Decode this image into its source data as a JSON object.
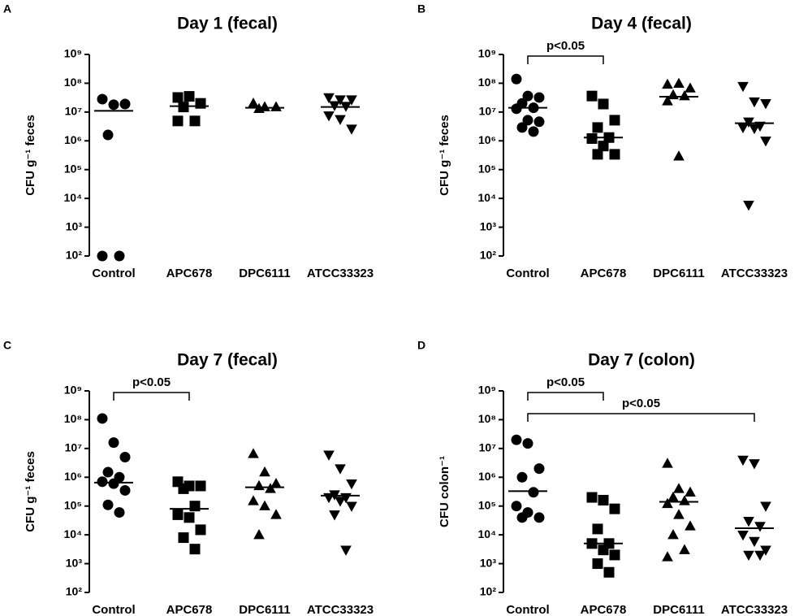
{
  "chart_data": [
    {
      "type": "dot",
      "panel": "A",
      "title": "Day 1 (fecal)",
      "ylabel": "CFU g⁻¹ feces",
      "log_scale": true,
      "color": "#000000",
      "markers": [
        "circle",
        "square",
        "triangle-up",
        "triangle-down"
      ],
      "ylim": [
        100,
        1000000000
      ],
      "yticks": [
        {
          "value": 100,
          "label": "10²"
        },
        {
          "value": 1000,
          "label": "10³"
        },
        {
          "value": 10000,
          "label": "10⁴"
        },
        {
          "value": 100000,
          "label": "10⁵"
        },
        {
          "value": 1000000,
          "label": "10⁶"
        },
        {
          "value": 10000000,
          "label": "10⁷"
        },
        {
          "value": 100000000,
          "label": "10⁸"
        },
        {
          "value": 1000000000,
          "label": "10⁹"
        }
      ],
      "categories": [
        "Control",
        "APC678",
        "DPC6111",
        "ATCC33323"
      ],
      "values": [
        [
          28000000,
          18000000,
          19000000,
          1600000,
          100,
          100
        ],
        [
          32000000,
          35000000,
          20000000,
          15000000,
          4900000,
          4900000
        ],
        [
          20000000,
          15000000,
          15000000,
          13000000
        ],
        [
          32000000,
          27000000,
          27000000,
          17000000,
          16000000,
          7500000,
          5600000,
          2600000
        ]
      ],
      "medians": [
        11000000,
        16000000,
        14000000,
        15000000
      ],
      "annotations": []
    },
    {
      "type": "dot",
      "panel": "B",
      "title": "Day 4 (fecal)",
      "ylabel": "CFU g⁻¹ feces",
      "log_scale": true,
      "color": "#000000",
      "markers": [
        "circle",
        "square",
        "triangle-up",
        "triangle-down"
      ],
      "ylim": [
        100,
        1000000000
      ],
      "yticks": [
        {
          "value": 100,
          "label": "10²"
        },
        {
          "value": 1000,
          "label": "10³"
        },
        {
          "value": 10000,
          "label": "10⁴"
        },
        {
          "value": 100000,
          "label": "10⁵"
        },
        {
          "value": 1000000,
          "label": "10⁶"
        },
        {
          "value": 10000000,
          "label": "10⁷"
        },
        {
          "value": 100000000,
          "label": "10⁸"
        },
        {
          "value": 1000000000,
          "label": "10⁹"
        }
      ],
      "categories": [
        "Control",
        "APC678",
        "DPC6111",
        "ATCC33323"
      ],
      "values": [
        [
          140000000,
          36000000,
          32000000,
          20000000,
          14000000,
          13000000,
          5200000,
          4600000,
          2900000,
          2100000
        ],
        [
          36000000,
          19000000,
          5200000,
          2900000,
          1300000,
          1200000,
          660000,
          340000,
          340000
        ],
        [
          91000000,
          98000000,
          67000000,
          39000000,
          36000000,
          24000000,
          290000
        ],
        [
          79000000,
          23000000,
          20000000,
          4600000,
          3300000,
          2900000,
          2700000,
          1000000,
          5900
        ]
      ],
      "medians": [
        14000000,
        1300000,
        34000000,
        4100000
      ],
      "annotations": [
        {
          "text": "p<0.05",
          "from": 0,
          "to": 1
        }
      ]
    },
    {
      "type": "dot",
      "panel": "C",
      "title": "Day 7 (fecal)",
      "ylabel": "CFU g⁻¹ feces",
      "log_scale": true,
      "color": "#000000",
      "markers": [
        "circle",
        "square",
        "triangle-up",
        "triangle-down"
      ],
      "ylim": [
        100,
        1000000000
      ],
      "yticks": [
        {
          "value": 100,
          "label": "10²"
        },
        {
          "value": 1000,
          "label": "10³"
        },
        {
          "value": 10000,
          "label": "10⁴"
        },
        {
          "value": 100000,
          "label": "10⁵"
        },
        {
          "value": 1000000,
          "label": "10⁶"
        },
        {
          "value": 10000000,
          "label": "10⁷"
        },
        {
          "value": 100000000,
          "label": "10⁸"
        },
        {
          "value": 1000000000,
          "label": "10⁹"
        }
      ],
      "categories": [
        "Control",
        "APC678",
        "DPC6111",
        "ATCC33323"
      ],
      "values": [
        [
          110000000,
          16000000,
          5000000,
          1500000,
          1000000,
          700000,
          600000,
          350000,
          110000,
          60000
        ],
        [
          700000,
          500000,
          500000,
          400000,
          100000,
          50000,
          40000,
          15000,
          8000,
          3200
        ],
        [
          6500000,
          1500000,
          600000,
          500000,
          400000,
          150000,
          100000,
          50000,
          10000
        ],
        [
          6000000,
          2000000,
          600000,
          250000,
          200000,
          200000,
          150000,
          100000,
          50000,
          3000
        ]
      ],
      "medians": [
        650000,
        80000,
        450000,
        230000
      ],
      "annotations": [
        {
          "text": "p<0.05",
          "from": 0,
          "to": 1
        }
      ]
    },
    {
      "type": "dot",
      "panel": "D",
      "title": "Day 7 (colon)",
      "ylabel": "CFU colon⁻¹",
      "log_scale": true,
      "color": "#000000",
      "markers": [
        "circle",
        "square",
        "triangle-up",
        "triangle-down"
      ],
      "ylim": [
        100,
        1000000000
      ],
      "yticks": [
        {
          "value": 100,
          "label": "10²"
        },
        {
          "value": 1000,
          "label": "10³"
        },
        {
          "value": 10000,
          "label": "10⁴"
        },
        {
          "value": 100000,
          "label": "10⁵"
        },
        {
          "value": 1000000,
          "label": "10⁶"
        },
        {
          "value": 10000000,
          "label": "10⁷"
        },
        {
          "value": 100000000,
          "label": "10⁸"
        },
        {
          "value": 1000000000,
          "label": "10⁹"
        }
      ],
      "categories": [
        "Control",
        "APC678",
        "DPC6111",
        "ATCC33323"
      ],
      "values": [
        [
          20000000,
          15000000,
          2000000,
          1000000,
          300000,
          100000,
          60000,
          40000,
          40000
        ],
        [
          200000,
          160000,
          80000,
          16000,
          5000,
          5000,
          3000,
          2000,
          1000,
          500
        ],
        [
          3000000,
          400000,
          300000,
          200000,
          150000,
          120000,
          50000,
          20000,
          10000,
          3000,
          1700
        ],
        [
          4000000,
          3000000,
          100000,
          30000,
          20000,
          10000,
          6000,
          3000,
          2000,
          2000
        ]
      ],
      "medians": [
        330000,
        5000,
        140000,
        17000
      ],
      "annotations": [
        {
          "text": "p<0.05",
          "from": 0,
          "to": 1
        },
        {
          "text": "p<0.05",
          "from": 0,
          "to": 3
        }
      ]
    }
  ]
}
